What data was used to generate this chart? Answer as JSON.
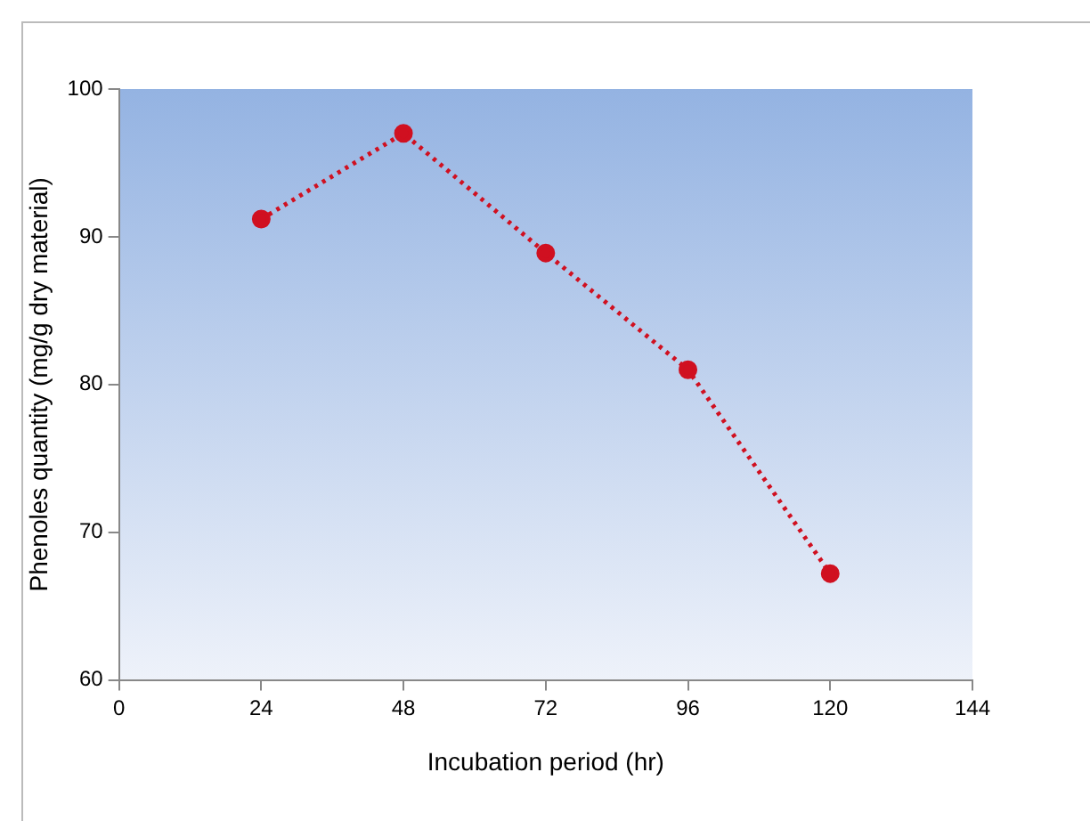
{
  "chart_data": {
    "type": "line",
    "xlabel": "Incubation period (hr)",
    "ylabel": "Phenoles quantity (mg/g dry material)",
    "x": [
      24,
      48,
      72,
      96,
      120
    ],
    "series": [
      {
        "color": "#d01020",
        "values": [
          91.2,
          97.0,
          88.9,
          81.0,
          67.2
        ]
      }
    ],
    "xlim": [
      0,
      144
    ],
    "xticks": [
      0,
      24,
      48,
      72,
      96,
      120,
      144
    ],
    "ylim": [
      60,
      100
    ],
    "yticks": [
      60,
      70,
      80,
      90,
      100
    ],
    "grid": false,
    "legend": false,
    "marker": "circle",
    "line_style": "dotted"
  }
}
